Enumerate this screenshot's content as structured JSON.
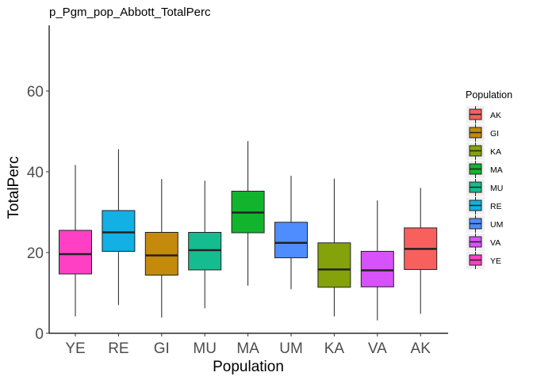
{
  "chart_data": {
    "type": "boxplot",
    "title": "p_Pgm_pop_Abbott_TotalPerc",
    "xlabel": "Population",
    "ylabel": "TotalPerc",
    "ylim": [
      0,
      75
    ],
    "yticks": [
      0,
      20,
      40,
      60
    ],
    "categories": [
      "YE",
      "RE",
      "GI",
      "MU",
      "MA",
      "UM",
      "KA",
      "VA",
      "AK"
    ],
    "boxes": [
      {
        "category": "YE",
        "min": 4.2,
        "q1": 14.7,
        "median": 19.6,
        "q3": 25.5,
        "max": 41.7,
        "color": "#FF40C5"
      },
      {
        "category": "RE",
        "min": 7.0,
        "q1": 20.3,
        "median": 25.0,
        "q3": 30.4,
        "max": 45.6,
        "color": "#12B0E4"
      },
      {
        "category": "GI",
        "min": 3.9,
        "q1": 14.4,
        "median": 19.3,
        "q3": 25.0,
        "max": 38.2,
        "color": "#C38A0C"
      },
      {
        "category": "MU",
        "min": 6.2,
        "q1": 15.7,
        "median": 20.6,
        "q3": 25.0,
        "max": 37.8,
        "color": "#14BC8F"
      },
      {
        "category": "MA",
        "min": 11.8,
        "q1": 24.9,
        "median": 29.9,
        "q3": 35.2,
        "max": 47.6,
        "color": "#12B42E"
      },
      {
        "category": "UM",
        "min": 10.9,
        "q1": 18.7,
        "median": 22.4,
        "q3": 27.5,
        "max": 39.0,
        "color": "#4F8DFF"
      },
      {
        "category": "KA",
        "min": 4.2,
        "q1": 11.4,
        "median": 15.8,
        "q3": 22.4,
        "max": 38.3,
        "color": "#85A20A"
      },
      {
        "category": "VA",
        "min": 3.2,
        "q1": 11.5,
        "median": 15.6,
        "q3": 20.3,
        "max": 32.9,
        "color": "#D752FA"
      },
      {
        "category": "AK",
        "min": 4.8,
        "q1": 15.8,
        "median": 20.9,
        "q3": 26.1,
        "max": 36.0,
        "color": "#F8605E"
      }
    ],
    "legend": {
      "title": "Population",
      "placement": "right",
      "entries": [
        {
          "label": "AK",
          "color": "#F8605E"
        },
        {
          "label": "GI",
          "color": "#C38A0C"
        },
        {
          "label": "KA",
          "color": "#85A20A"
        },
        {
          "label": "MA",
          "color": "#12B42E"
        },
        {
          "label": "MU",
          "color": "#14BC8F"
        },
        {
          "label": "RE",
          "color": "#12B0E4"
        },
        {
          "label": "UM",
          "color": "#4F8DFF"
        },
        {
          "label": "VA",
          "color": "#D752FA"
        },
        {
          "label": "YE",
          "color": "#FF40C5"
        }
      ]
    },
    "grid": false
  }
}
